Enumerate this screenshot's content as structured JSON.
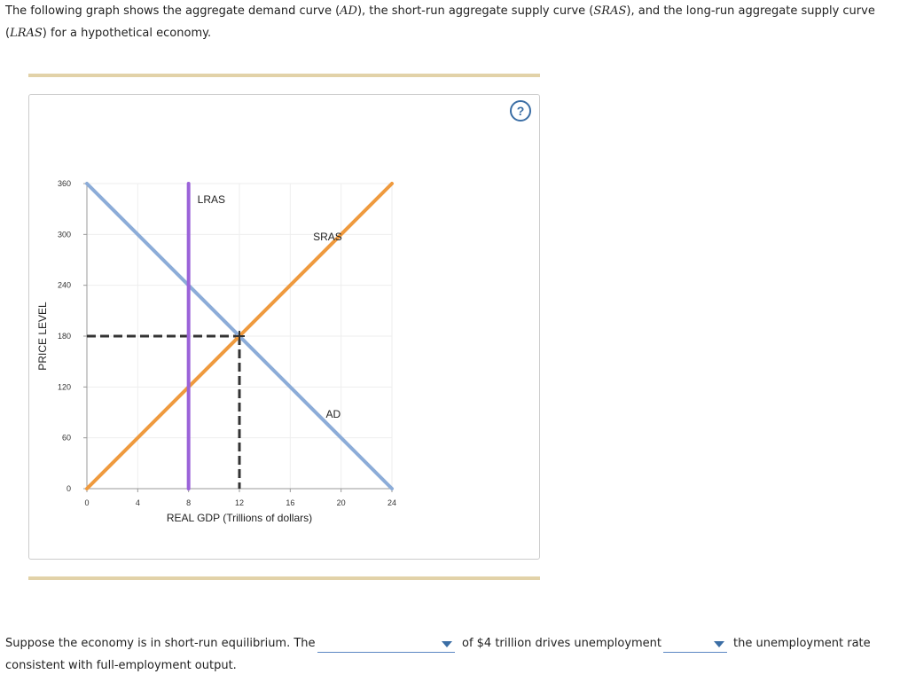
{
  "intro": {
    "part1": "The following graph shows the aggregate demand curve (",
    "ad_abbr": "AD",
    "part2": "), the short-run aggregate supply curve (",
    "sras_abbr": "SRAS",
    "part3": "), and the long-run aggregate supply curve (",
    "lras_abbr": "LRAS",
    "part4": ") for a hypothetical economy."
  },
  "help": {
    "icon": "question-icon",
    "symbol": "?"
  },
  "chart_data": {
    "type": "line",
    "xlabel": "REAL GDP (Trillions of dollars)",
    "ylabel": "PRICE LEVEL",
    "xlim": [
      0,
      24
    ],
    "ylim": [
      0,
      360
    ],
    "xticks": [
      0,
      4,
      8,
      12,
      16,
      20,
      24
    ],
    "yticks": [
      0,
      60,
      120,
      180,
      240,
      300,
      360
    ],
    "grid": true,
    "series": [
      {
        "name": "AD",
        "color": "#8cacd8",
        "points": [
          [
            0,
            360
          ],
          [
            24,
            0
          ]
        ]
      },
      {
        "name": "SRAS",
        "color": "#ef9a3e",
        "points": [
          [
            0,
            0
          ],
          [
            24,
            360
          ]
        ]
      },
      {
        "name": "LRAS",
        "color": "#9b63d9",
        "points": [
          [
            8,
            0
          ],
          [
            8,
            360
          ]
        ]
      }
    ],
    "equilibrium": {
      "x": 12,
      "y": 180,
      "color": "#333333"
    }
  },
  "question": {
    "part1": "Suppose the economy is in short-run equilibrium. The",
    "part2": "of $4 trillion drives unemployment",
    "part3": "the unemployment rate",
    "part4": "consistent with full-employment output.",
    "dropdown1_value": "",
    "dropdown2_value": ""
  },
  "colors": {
    "accent": "#3b6ea5",
    "rule": "#e2d2a8"
  }
}
